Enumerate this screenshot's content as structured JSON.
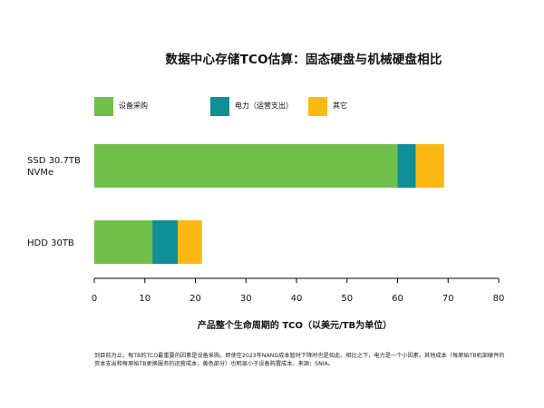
{
  "chart_data": {
    "type": "bar",
    "orientation": "horizontal",
    "stacked": true,
    "title": "数据中心存储TCO估算：固态硬盘与机械硬盘相比",
    "xlabel": "产品整个生命周期的 TCO（以美元/TB为单位）",
    "xlim": [
      0,
      80
    ],
    "xticks": [
      0,
      10,
      20,
      30,
      40,
      50,
      60,
      70,
      80
    ],
    "categories": [
      "SSD 30.7TB NVMe",
      "HDD 30TB"
    ],
    "category_lines": [
      [
        "SSD 30.7TB",
        "NVMe"
      ],
      [
        "HDD 30TB"
      ]
    ],
    "series": [
      {
        "name": "设备采购",
        "color": "#70bf4b",
        "values": [
          60.0,
          11.5
        ]
      },
      {
        "name": "电力（运营支出）",
        "color": "#0f8f96",
        "values": [
          3.6,
          5.0
        ]
      },
      {
        "name": "其它",
        "color": "#fdb913",
        "values": [
          5.6,
          4.8
        ]
      }
    ],
    "legend_position": "top-left",
    "grid": false
  },
  "footnote": "到目前为止，每TB的TCO最重要的因素是设备采购。即使在2023年NAND成本暂时下降时也是如此。相比之下，电力是一个小因素。其他成本（每原始TB机架硬件的资本支出和每原始TB更换服务的运营成本，黄色部分）也明显小于设备购置成本。来源：SNIA。"
}
